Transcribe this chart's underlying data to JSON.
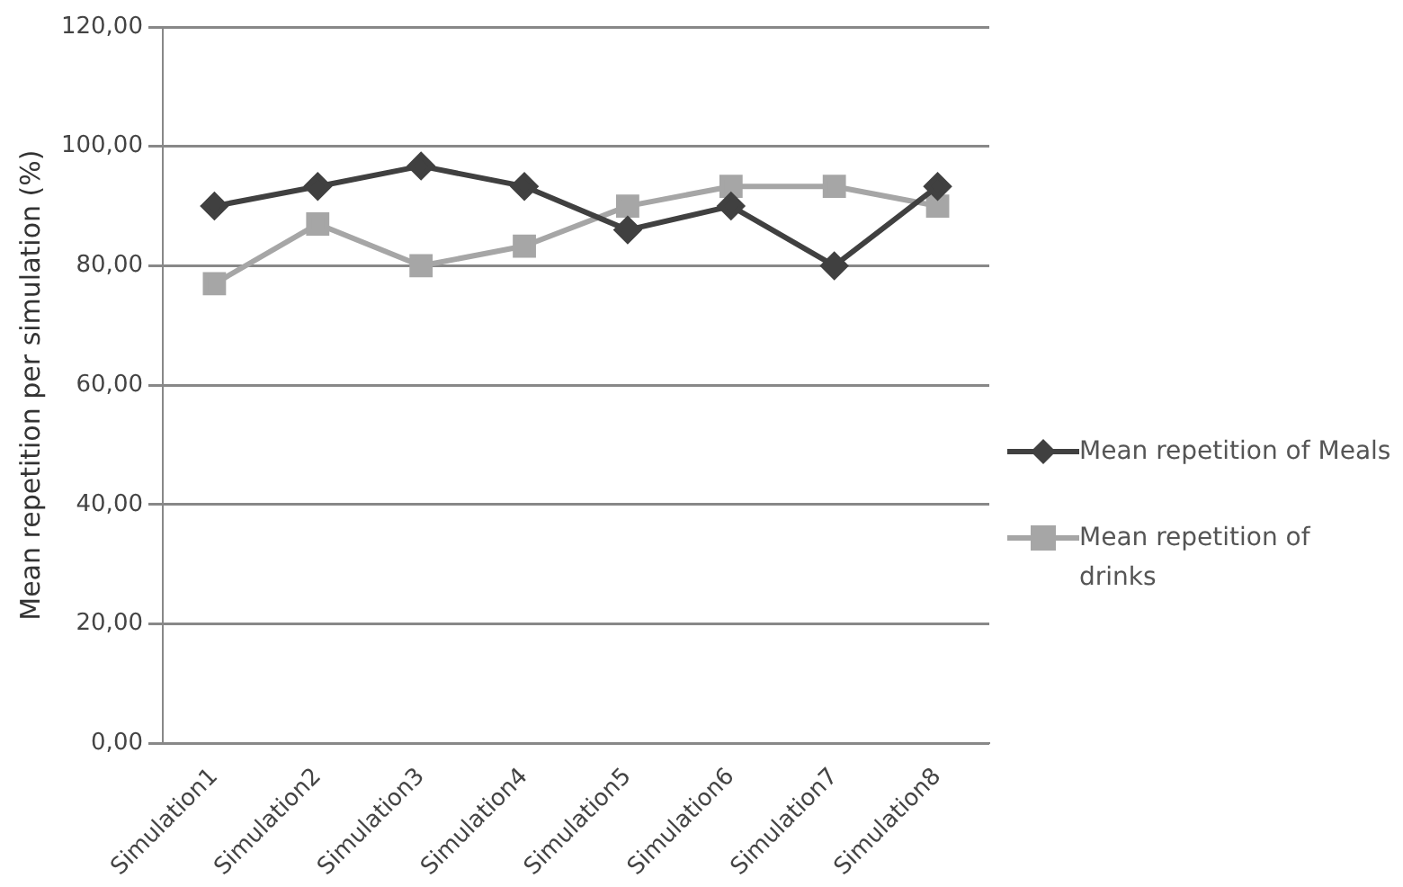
{
  "chart_data": {
    "type": "line",
    "ylabel": "Mean repetition per simulation (%)",
    "categories": [
      "Simulation1",
      "Simulation2",
      "Simulation3",
      "Simulation4",
      "Simulation5",
      "Simulation6",
      "Simulation7",
      "Simulation8"
    ],
    "series": [
      {
        "name": "Mean repetition of Meals",
        "color": "#404040",
        "marker": "diamond",
        "values": [
          90,
          93.3,
          96.7,
          93.3,
          86,
          90,
          80,
          93.3
        ]
      },
      {
        "name": "Mean repetition of drinks",
        "color": "#a6a6a6",
        "marker": "square",
        "values": [
          77,
          87,
          80,
          83.3,
          90,
          93.3,
          93.3,
          90
        ]
      }
    ],
    "ylim": [
      0,
      120
    ],
    "yticks": [
      {
        "value": 0,
        "label": "0,00"
      },
      {
        "value": 20,
        "label": "20,00"
      },
      {
        "value": 40,
        "label": "40,00"
      },
      {
        "value": 60,
        "label": "60,00"
      },
      {
        "value": 80,
        "label": "80,00"
      },
      {
        "value": 100,
        "label": "100,00"
      },
      {
        "value": 120,
        "label": "120,00"
      }
    ],
    "grid": "y",
    "legend": "right"
  }
}
